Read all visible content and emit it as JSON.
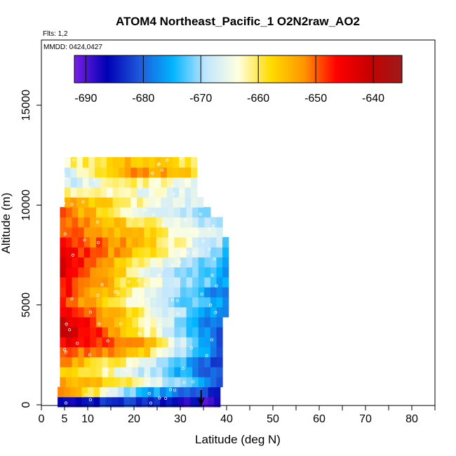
{
  "chart_data": {
    "type": "heatmap",
    "title": "ATOM4 Northeast_Pacific_1 O2N2raw_AO2",
    "annotations": [
      "Flts: 1,2",
      "MMDD: 0424,0427"
    ],
    "xlabel": "Latitude (deg N)",
    "ylabel": "Altitude (m)",
    "xlim": [
      0,
      85
    ],
    "ylim": [
      0,
      17500
    ],
    "x_ticks": [
      0,
      5,
      10,
      20,
      30,
      40,
      50,
      60,
      70,
      80
    ],
    "x_minor_ticks": [
      15,
      25,
      35,
      45,
      55,
      65,
      75,
      85
    ],
    "y_ticks": [
      0,
      5000,
      10000,
      15000
    ],
    "colorbar": {
      "range": [
        -692,
        -635
      ],
      "ticks": [
        -690,
        -680,
        -670,
        -660,
        -650,
        -640
      ],
      "colors": [
        "#7a1fe6",
        "#0000b4",
        "#1e5adc",
        "#00b4ff",
        "#bfe6ff",
        "#ffffe0",
        "#ffdc00",
        "#ff9600",
        "#ff0000",
        "#c80000",
        "#9c1a1a"
      ]
    },
    "marker_arrow_latitude": 34.5,
    "rows": [
      {
        "alt": 150,
        "top_lat": 38,
        "left": -686,
        "center": -682,
        "right": -690
      },
      {
        "alt": 650,
        "top_lat": 38,
        "left": -650,
        "center": -674,
        "right": -684
      },
      {
        "alt": 1150,
        "top_lat": 38,
        "left": -652,
        "center": -662,
        "right": -682
      },
      {
        "alt": 1650,
        "top_lat": 38.5,
        "left": -655,
        "center": -668,
        "right": -682
      },
      {
        "alt": 2150,
        "top_lat": 38.5,
        "left": -652,
        "center": -664,
        "right": -683
      },
      {
        "alt": 2650,
        "top_lat": 38.5,
        "left": -648,
        "center": -656,
        "right": -682
      },
      {
        "alt": 3150,
        "top_lat": 39,
        "left": -645,
        "center": -654,
        "right": -684
      },
      {
        "alt": 3650,
        "top_lat": 39,
        "left": -640,
        "center": -660,
        "right": -683
      },
      {
        "alt": 4150,
        "top_lat": 39,
        "left": -641,
        "center": -661,
        "right": -682
      },
      {
        "alt": 4650,
        "top_lat": 39.5,
        "left": -644,
        "center": -662,
        "right": -680
      },
      {
        "alt": 5150,
        "top_lat": 40,
        "left": -648,
        "center": -666,
        "right": -678
      },
      {
        "alt": 5650,
        "top_lat": 39.5,
        "left": -646,
        "center": -664,
        "right": -679
      },
      {
        "alt": 6150,
        "top_lat": 39.5,
        "left": -645,
        "center": -663,
        "right": -676
      },
      {
        "alt": 6650,
        "top_lat": 39.5,
        "left": -642,
        "center": -664,
        "right": -677
      },
      {
        "alt": 7150,
        "top_lat": 39.5,
        "left": -643,
        "center": -662,
        "right": -674
      },
      {
        "alt": 7650,
        "top_lat": 39.5,
        "left": -644,
        "center": -658,
        "right": -673
      },
      {
        "alt": 8150,
        "top_lat": 39.5,
        "left": -646,
        "center": -656,
        "right": -671
      },
      {
        "alt": 8650,
        "top_lat": 39,
        "left": -648,
        "center": -657,
        "right": -670
      },
      {
        "alt": 9150,
        "top_lat": 38,
        "left": -649,
        "center": -660,
        "right": -672
      },
      {
        "alt": 9650,
        "top_lat": 36,
        "left": -650,
        "center": -664,
        "right": -670
      },
      {
        "alt": 10150,
        "top_lat": 34.5,
        "left": -652,
        "center": -662,
        "right": -668
      },
      {
        "alt": 10650,
        "top_lat": 33.5,
        "left": -662,
        "center": -664,
        "right": -667
      },
      {
        "alt": 11150,
        "top_lat": 33,
        "left": -668,
        "center": -660,
        "right": -665
      },
      {
        "alt": 11650,
        "top_lat": 33,
        "left": -668,
        "center": -650,
        "right": -658
      },
      {
        "alt": 12150,
        "top_lat": 33,
        "left": -662,
        "center": -655,
        "right": -660
      }
    ]
  }
}
